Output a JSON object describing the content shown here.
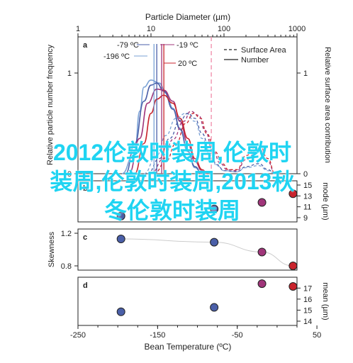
{
  "overlay_text": "2012伦敦时装周,伦敦时装周,伦敦时装周,2013秋冬伦敦时装周",
  "chart_data": [
    {
      "panel": "a",
      "type": "line",
      "top_xlabel": "Particle Diameter (µm)",
      "top_xscale": "log",
      "top_xlim": [
        1,
        1000
      ],
      "top_xticks": [
        "1",
        "10",
        "100",
        "1000"
      ],
      "ylabel_left": "Relative particle number frequency",
      "ylabel_right": "Relative surface area contribution",
      "yticks": [
        "0",
        "1"
      ],
      "legend": {
        "placement": "top-right",
        "entries": [
          "Surface Area",
          "Number"
        ]
      },
      "annotations": [
        "-79 ºC",
        "-196 ºC",
        "-19 ºC",
        "20 ºC"
      ],
      "mode_lines_um": [
        11,
        12,
        14,
        15,
        67
      ],
      "series": [
        {
          "name": "-196 ºC",
          "color": "#7aa2d6",
          "style": "solid",
          "x": [
            4,
            6,
            7,
            8,
            10,
            13,
            16,
            20,
            25,
            32,
            40,
            50
          ],
          "y": [
            0,
            0.22,
            0.62,
            0.86,
            0.93,
            0.9,
            0.8,
            0.65,
            0.45,
            0.22,
            0.06,
            0
          ]
        },
        {
          "name": "-79 ºC",
          "color": "#4a5fa8",
          "style": "solid",
          "x": [
            4.5,
            6,
            8,
            10,
            12,
            15,
            20,
            25,
            32,
            40,
            50
          ],
          "y": [
            0,
            0.3,
            0.72,
            0.88,
            0.9,
            0.82,
            0.64,
            0.44,
            0.22,
            0.07,
            0
          ]
        },
        {
          "name": "-19 ºC",
          "color": "#a0357a",
          "style": "solid",
          "x": [
            5,
            7,
            9,
            12,
            15,
            20,
            25,
            32,
            40,
            50,
            60
          ],
          "y": [
            0,
            0.35,
            0.7,
            0.84,
            0.83,
            0.72,
            0.52,
            0.3,
            0.12,
            0.03,
            0
          ]
        },
        {
          "name": "20 ºC",
          "color": "#c8232c",
          "style": "solid",
          "x": [
            6,
            8,
            10,
            12,
            15,
            20,
            25,
            32,
            40,
            50,
            60
          ],
          "y": [
            0,
            0.3,
            0.6,
            0.74,
            0.78,
            0.7,
            0.55,
            0.35,
            0.15,
            0.04,
            0
          ]
        },
        {
          "name": "-196 ºC SA",
          "color": "#7aa2d6",
          "style": "dashed",
          "x": [
            8,
            12,
            16,
            22,
            30,
            40,
            50,
            65,
            80,
            100,
            150,
            200,
            300,
            400,
            500
          ],
          "y": [
            0,
            0.18,
            0.38,
            0.55,
            0.6,
            0.52,
            0.35,
            0.18,
            0.08,
            0.03,
            0.02,
            0.06,
            0.08,
            0.03,
            0
          ]
        },
        {
          "name": "-79 ºC SA",
          "color": "#4a5fa8",
          "style": "dashed",
          "x": [
            9,
            13,
            18,
            25,
            32,
            40,
            50,
            65,
            80,
            100,
            150,
            200,
            300,
            400,
            500
          ],
          "y": [
            0,
            0.15,
            0.35,
            0.53,
            0.6,
            0.55,
            0.4,
            0.2,
            0.09,
            0.03,
            0.02,
            0.07,
            0.1,
            0.04,
            0
          ]
        },
        {
          "name": "-19 ºC SA",
          "color": "#a0357a",
          "style": "dashed",
          "x": [
            10,
            15,
            20,
            28,
            35,
            45,
            55,
            70,
            90,
            110,
            150,
            200,
            300,
            400,
            500
          ],
          "y": [
            0,
            0.15,
            0.34,
            0.52,
            0.62,
            0.58,
            0.43,
            0.23,
            0.1,
            0.04,
            0.03,
            0.14,
            0.25,
            0.12,
            0
          ]
        },
        {
          "name": "20 ºC SA",
          "color": "#c8232c",
          "style": "dashed",
          "x": [
            11,
            16,
            22,
            30,
            38,
            48,
            58,
            75,
            95,
            115,
            150,
            200,
            300,
            400,
            500
          ],
          "y": [
            0,
            0.12,
            0.3,
            0.5,
            0.6,
            0.55,
            0.4,
            0.22,
            0.1,
            0.04,
            0.04,
            0.18,
            0.3,
            0.15,
            0
          ]
        }
      ]
    },
    {
      "panel": "b",
      "type": "scatter",
      "ylabel_right": "mode (µm)",
      "yticks": [
        "9",
        "11",
        "13",
        "15"
      ],
      "ylim": [
        9,
        15
      ],
      "points": [
        {
          "x": -196,
          "y": 9.3,
          "color": "#4a5fa8"
        },
        {
          "x": -79,
          "y": 10.6,
          "color": "#4a5fa8"
        },
        {
          "x": -19,
          "y": 11.8,
          "color": "#a0357a"
        },
        {
          "x": 20,
          "y": 13.4,
          "color": "#c8232c"
        }
      ]
    },
    {
      "panel": "c",
      "type": "scatter",
      "ylabel_left": "Skewness",
      "yticks": [
        "0.8",
        "1.2"
      ],
      "ylim": [
        0.8,
        1.2
      ],
      "points": [
        {
          "x": -196,
          "y": 1.13,
          "color": "#4a5fa8"
        },
        {
          "x": -79,
          "y": 1.09,
          "color": "#4a5fa8"
        },
        {
          "x": -19,
          "y": 0.97,
          "color": "#a0357a"
        },
        {
          "x": 20,
          "y": 0.8,
          "color": "#c8232c"
        }
      ]
    },
    {
      "panel": "d",
      "type": "scatter",
      "ylabel_right": "mean (µm)",
      "yticks": [
        "14",
        "15",
        "16",
        "17"
      ],
      "ylim": [
        14,
        17.6
      ],
      "xlabel": "Bean Temperature (ºC)",
      "xlim": [
        -250,
        25
      ],
      "xticks": [
        "-250",
        "-150",
        "-50",
        "50"
      ],
      "points": [
        {
          "x": -196,
          "y": 14.85,
          "color": "#4a5fa8"
        },
        {
          "x": -79,
          "y": 15.25,
          "color": "#4a5fa8"
        },
        {
          "x": -19,
          "y": 17.4,
          "color": "#a0357a"
        },
        {
          "x": 20,
          "y": 17.15,
          "color": "#c8232c"
        }
      ]
    }
  ]
}
